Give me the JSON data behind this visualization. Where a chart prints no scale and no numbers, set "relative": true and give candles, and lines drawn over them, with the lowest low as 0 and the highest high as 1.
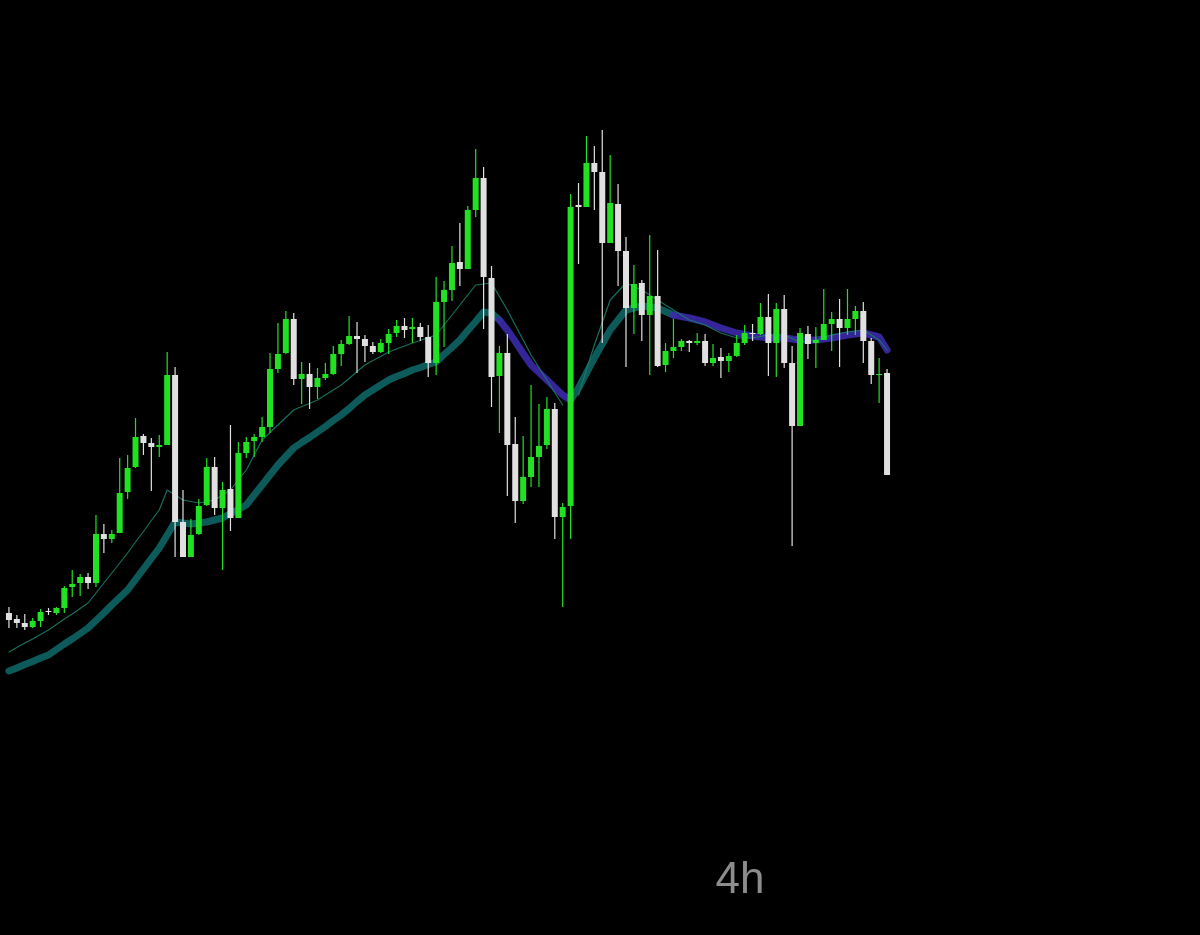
{
  "chart_data": {
    "type": "candlestick",
    "title": "4h",
    "relative": true,
    "categories": [
      null,
      null,
      null,
      null,
      null,
      null,
      null,
      null,
      null,
      null,
      null,
      null,
      null,
      null,
      null,
      null,
      null,
      null,
      null,
      null,
      null,
      null,
      null,
      null,
      null,
      null,
      null,
      null,
      null,
      null,
      null,
      null,
      null,
      null,
      null,
      null,
      null,
      null,
      null,
      null,
      null,
      null,
      null,
      null,
      null,
      null,
      null,
      null,
      null,
      null,
      null,
      null,
      null,
      null,
      null,
      null,
      null,
      null,
      null,
      null,
      null,
      null,
      null,
      null,
      null,
      null,
      null,
      null,
      null,
      null,
      null,
      null,
      null,
      null,
      null,
      null,
      null,
      null,
      null,
      null,
      null,
      null,
      null,
      null,
      null,
      null,
      null,
      null,
      null,
      null,
      null,
      null,
      null,
      null,
      null,
      null,
      null,
      null,
      null,
      null,
      null,
      null,
      null,
      null,
      null,
      null,
      null,
      null,
      null,
      null,
      null,
      null
    ],
    "ohlc": [
      [
        0.034,
        0.046,
        0.004,
        0.02
      ],
      [
        0.022,
        0.03,
        0.004,
        0.014
      ],
      [
        0.014,
        0.032,
        0,
        0.006
      ],
      [
        0.006,
        0.024,
        0.004,
        0.018
      ],
      [
        0.018,
        0.042,
        0.006,
        0.036
      ],
      [
        0.038,
        0.044,
        0.03,
        0.036
      ],
      [
        0.034,
        0.046,
        0.03,
        0.044
      ],
      [
        0.044,
        0.088,
        0.034,
        0.084
      ],
      [
        0.086,
        0.12,
        0.066,
        0.092
      ],
      [
        0.094,
        0.112,
        0.068,
        0.106
      ],
      [
        0.106,
        0.114,
        0.082,
        0.094
      ],
      [
        0.094,
        0.23,
        0.086,
        0.192
      ],
      [
        0.192,
        0.212,
        0.154,
        0.182
      ],
      [
        0.182,
        0.2,
        0.174,
        0.192
      ],
      [
        0.194,
        0.344,
        0.194,
        0.274
      ],
      [
        0.276,
        0.35,
        0.262,
        0.324
      ],
      [
        0.326,
        0.424,
        0.324,
        0.386
      ],
      [
        0.388,
        0.392,
        0.35,
        0.374
      ],
      [
        0.374,
        0.384,
        0.278,
        0.366
      ],
      [
        0.366,
        0.39,
        0.346,
        0.37
      ],
      [
        0.37,
        0.556,
        0.37,
        0.51
      ],
      [
        0.51,
        0.526,
        0.146,
        0.216
      ],
      [
        0.216,
        0.28,
        0.146,
        0.146
      ],
      [
        0.146,
        0.222,
        0.146,
        0.19
      ],
      [
        0.192,
        0.262,
        0.19,
        0.248
      ],
      [
        0.25,
        0.344,
        0.248,
        0.326
      ],
      [
        0.326,
        0.346,
        0.23,
        0.244
      ],
      [
        0.244,
        0.296,
        0.12,
        0.28
      ],
      [
        0.282,
        0.41,
        0.198,
        0.224
      ],
      [
        0.224,
        0.376,
        0.224,
        0.354
      ],
      [
        0.354,
        0.386,
        0.344,
        0.376
      ],
      [
        0.378,
        0.392,
        0.346,
        0.386
      ],
      [
        0.386,
        0.426,
        0.376,
        0.406
      ],
      [
        0.406,
        0.554,
        0.394,
        0.522
      ],
      [
        0.522,
        0.614,
        0.514,
        0.552
      ],
      [
        0.554,
        0.638,
        0.552,
        0.622
      ],
      [
        0.622,
        0.634,
        0.49,
        0.502
      ],
      [
        0.502,
        0.536,
        0.452,
        0.512
      ],
      [
        0.512,
        0.534,
        0.442,
        0.486
      ],
      [
        0.486,
        0.524,
        0.462,
        0.504
      ],
      [
        0.504,
        0.534,
        0.5,
        0.512
      ],
      [
        0.512,
        0.568,
        0.51,
        0.552
      ],
      [
        0.552,
        0.58,
        0.528,
        0.572
      ],
      [
        0.572,
        0.628,
        0.57,
        0.588
      ],
      [
        0.588,
        0.616,
        0.514,
        0.582
      ],
      [
        0.582,
        0.59,
        0.536,
        0.568
      ],
      [
        0.568,
        0.576,
        0.552,
        0.556
      ],
      [
        0.556,
        0.582,
        0.554,
        0.574
      ],
      [
        0.574,
        0.602,
        0.552,
        0.592
      ],
      [
        0.594,
        0.62,
        0.586,
        0.608
      ],
      [
        0.608,
        0.624,
        0.584,
        0.6
      ],
      [
        0.602,
        0.624,
        0.574,
        0.606
      ],
      [
        0.606,
        0.614,
        0.578,
        0.586
      ],
      [
        0.586,
        0.61,
        0.506,
        0.534
      ],
      [
        0.534,
        0.706,
        0.51,
        0.656
      ],
      [
        0.656,
        0.698,
        0.566,
        0.68
      ],
      [
        0.68,
        0.768,
        0.658,
        0.734
      ],
      [
        0.736,
        0.814,
        0.688,
        0.722
      ],
      [
        0.722,
        0.848,
        0.722,
        0.84
      ],
      [
        0.84,
        0.962,
        0.826,
        0.904
      ],
      [
        0.904,
        0.926,
        0.602,
        0.706
      ],
      [
        0.704,
        0.728,
        0.446,
        0.506
      ],
      [
        0.508,
        0.568,
        0.394,
        0.554
      ],
      [
        0.554,
        0.592,
        0.268,
        0.37
      ],
      [
        0.372,
        0.426,
        0.214,
        0.258
      ],
      [
        0.258,
        0.388,
        0.252,
        0.306
      ],
      [
        0.306,
        0.49,
        0.286,
        0.346
      ],
      [
        0.346,
        0.452,
        0.286,
        0.368
      ],
      [
        0.37,
        0.466,
        0.362,
        0.442
      ],
      [
        0.442,
        0.454,
        0.182,
        0.226
      ],
      [
        0.226,
        0.254,
        0.046,
        0.246
      ],
      [
        0.248,
        0.872,
        0.182,
        0.846
      ],
      [
        0.85,
        0.894,
        0.732,
        0.846
      ],
      [
        0.846,
        0.988,
        0.846,
        0.934
      ],
      [
        0.934,
        0.968,
        0.84,
        0.916
      ],
      [
        0.916,
        1,
        0.574,
        0.774
      ],
      [
        0.774,
        0.95,
        0.774,
        0.854
      ],
      [
        0.852,
        0.892,
        0.688,
        0.758
      ],
      [
        0.758,
        0.786,
        0.526,
        0.644
      ],
      [
        0.644,
        0.73,
        0.592,
        0.692
      ],
      [
        0.694,
        0.7,
        0.578,
        0.63
      ],
      [
        0.63,
        0.79,
        0.51,
        0.668
      ],
      [
        0.668,
        0.76,
        0.526,
        0.528
      ],
      [
        0.53,
        0.574,
        0.516,
        0.558
      ],
      [
        0.558,
        0.622,
        0.544,
        0.566
      ],
      [
        0.566,
        0.582,
        0.558,
        0.578
      ],
      [
        0.578,
        0.58,
        0.556,
        0.574
      ],
      [
        0.574,
        0.594,
        0.57,
        0.578
      ],
      [
        0.578,
        0.592,
        0.528,
        0.534
      ],
      [
        0.534,
        0.572,
        0.528,
        0.544
      ],
      [
        0.546,
        0.564,
        0.504,
        0.538
      ],
      [
        0.538,
        0.554,
        0.516,
        0.548
      ],
      [
        0.548,
        0.59,
        0.546,
        0.574
      ],
      [
        0.574,
        0.61,
        0.57,
        0.594
      ],
      [
        0.594,
        0.612,
        0.578,
        0.592
      ],
      [
        0.592,
        0.654,
        0.59,
        0.626
      ],
      [
        0.626,
        0.672,
        0.508,
        0.574
      ],
      [
        0.574,
        0.654,
        0.506,
        0.642
      ],
      [
        0.642,
        0.67,
        0.524,
        0.534
      ],
      [
        0.534,
        0.568,
        0.168,
        0.408
      ],
      [
        0.408,
        0.604,
        0.408,
        0.594
      ],
      [
        0.592,
        0.608,
        0.542,
        0.572
      ],
      [
        0.574,
        0.606,
        0.524,
        0.58
      ],
      [
        0.58,
        0.682,
        0.58,
        0.612
      ],
      [
        0.612,
        0.636,
        0.558,
        0.622
      ],
      [
        0.622,
        0.662,
        0.526,
        0.604
      ],
      [
        0.604,
        0.682,
        0.59,
        0.622
      ],
      [
        0.622,
        0.648,
        0.59,
        0.638
      ],
      [
        0.638,
        0.656,
        0.534,
        0.578
      ],
      [
        0.578,
        0.584,
        0.492,
        0.51
      ],
      [
        0.51,
        0.544,
        0.454,
        0.512
      ],
      [
        0.514,
        0.522,
        0.31,
        0.31
      ]
    ],
    "colors": [
      "#e0e0e0",
      "#e0e0e0",
      "#e0e0e0",
      "#22e022",
      "#22e022",
      "#e0e0e0",
      "#22e022",
      "#22e022",
      "#22e022",
      "#22e022",
      "#e0e0e0",
      "#22e022",
      "#e0e0e0",
      "#22e022",
      "#22e022",
      "#22e022",
      "#22e022",
      "#e0e0e0",
      "#e0e0e0",
      "#22e022",
      "#22e022",
      "#e0e0e0",
      "#e0e0e0",
      "#22e022",
      "#22e022",
      "#22e022",
      "#e0e0e0",
      "#22e022",
      "#e0e0e0",
      "#22e022",
      "#22e022",
      "#22e022",
      "#22e022",
      "#22e022",
      "#22e022",
      "#22e022",
      "#e0e0e0",
      "#22e022",
      "#e0e0e0",
      "#22e022",
      "#22e022",
      "#22e022",
      "#22e022",
      "#22e022",
      "#e0e0e0",
      "#e0e0e0",
      "#e0e0e0",
      "#22e022",
      "#22e022",
      "#22e022",
      "#e0e0e0",
      "#22e022",
      "#e0e0e0",
      "#e0e0e0",
      "#22e022",
      "#22e022",
      "#22e022",
      "#e0e0e0",
      "#22e022",
      "#22e022",
      "#e0e0e0",
      "#e0e0e0",
      "#22e022",
      "#e0e0e0",
      "#e0e0e0",
      "#22e022",
      "#22e022",
      "#22e022",
      "#22e022",
      "#e0e0e0",
      "#22e022",
      "#22e022",
      "#e0e0e0",
      "#22e022",
      "#e0e0e0",
      "#e0e0e0",
      "#22e022",
      "#e0e0e0",
      "#e0e0e0",
      "#22e022",
      "#e0e0e0",
      "#22e022",
      "#e0e0e0",
      "#22e022",
      "#22e022",
      "#22e022",
      "#e0e0e0",
      "#22e022",
      "#e0e0e0",
      "#22e022",
      "#e0e0e0",
      "#22e022",
      "#22e022",
      "#22e022",
      "#e0e0e0",
      "#22e022",
      "#e0e0e0",
      "#22e022",
      "#e0e0e0",
      "#e0e0e0",
      "#22e022",
      "#e0e0e0",
      "#22e022",
      "#22e022",
      "#22e022",
      "#e0e0e0",
      "#22e022",
      "#22e022",
      "#e0e0e0",
      "#e0e0e0",
      "#22e022",
      "#e0e0e0"
    ],
    "series": [
      {
        "type": "line",
        "color": "#0e6464",
        "values": [
          -0.082,
          -0.076,
          -0.069,
          -0.063,
          -0.056,
          -0.05,
          -0.039,
          -0.028,
          -0.018,
          -0.007,
          0.004,
          0.019,
          0.034,
          0.05,
          0.065,
          0.08,
          0.101,
          0.122,
          0.143,
          0.164,
          0.19,
          0.216,
          0.214,
          0.212,
          0.214,
          0.216,
          0.22,
          0.224,
          0.233,
          0.241,
          0.25,
          0.27,
          0.29,
          0.31,
          0.33,
          0.347,
          0.364,
          0.375,
          0.385,
          0.396,
          0.407,
          0.419,
          0.43,
          0.443,
          0.457,
          0.47,
          0.48,
          0.49,
          0.5,
          0.507,
          0.513,
          0.52,
          0.525,
          0.531,
          0.536,
          0.551,
          0.565,
          0.58,
          0.599,
          0.617,
          0.636,
          0.634,
          0.62,
          null,
          null,
          null,
          null,
          null,
          null,
          null,
          null,
          0.46,
          0.484,
          0.514,
          0.544,
          0.572,
          0.6,
          0.62,
          0.64,
          0.644,
          0.648,
          0.646,
          0.644,
          0.637,
          0.63,
          null,
          null,
          null,
          null,
          null,
          null,
          null,
          null,
          null,
          null,
          null,
          null,
          null,
          null,
          null,
          null,
          null,
          null,
          null,
          null,
          null,
          null,
          null,
          null,
          null,
          null,
          null
        ]
      },
      {
        "type": "line",
        "color": "#3a2aa8",
        "values": [
          null,
          null,
          null,
          null,
          null,
          null,
          null,
          null,
          null,
          null,
          null,
          null,
          null,
          null,
          null,
          null,
          null,
          null,
          null,
          null,
          null,
          null,
          null,
          null,
          null,
          null,
          null,
          null,
          null,
          null,
          null,
          null,
          null,
          null,
          null,
          null,
          null,
          null,
          null,
          null,
          null,
          null,
          null,
          null,
          null,
          null,
          null,
          null,
          null,
          null,
          null,
          null,
          null,
          null,
          null,
          null,
          null,
          null,
          null,
          null,
          null,
          null,
          0.62,
          0.6,
          0.577,
          0.553,
          0.53,
          0.515,
          0.5,
          0.485,
          0.47,
          0.46,
          null,
          null,
          null,
          null,
          null,
          null,
          null,
          null,
          null,
          null,
          null,
          null,
          0.63,
          0.627,
          0.624,
          0.62,
          0.616,
          0.61,
          0.604,
          0.599,
          0.594,
          0.591,
          0.588,
          0.586,
          0.584,
          0.584,
          0.584,
          0.582,
          0.58,
          0.58,
          0.58,
          0.582,
          0.584,
          0.587,
          0.59,
          0.592,
          0.594,
          0.59,
          0.586,
          0.56
        ]
      },
      {
        "type": "line",
        "color": "#1a7a66",
        "values": [
          -0.044,
          -0.035,
          -0.026,
          -0.018,
          -0.009,
          0,
          0.011,
          0.022,
          0.032,
          0.043,
          0.054,
          0.074,
          0.094,
          0.114,
          0.134,
          0.154,
          0.176,
          0.197,
          0.219,
          0.24,
          0.28,
          0.27,
          0.26,
          0.257,
          0.254,
          0.257,
          0.26,
          0.27,
          0.28,
          0.3,
          0.32,
          0.35,
          0.38,
          0.395,
          0.41,
          0.425,
          0.44,
          0.447,
          0.453,
          0.46,
          0.47,
          0.48,
          0.49,
          0.503,
          0.517,
          0.53,
          0.539,
          0.547,
          0.556,
          0.562,
          0.568,
          0.574,
          0.579,
          0.585,
          0.59,
          0.61,
          0.63,
          0.65,
          0.67,
          0.69,
          0.692,
          0.694,
          0.667,
          0.64,
          0.61,
          0.58,
          0.55,
          0.525,
          0.5,
          0.475,
          0.45,
          null,
          0.47,
          0.52,
          0.57,
          0.615,
          0.66,
          0.677,
          0.694,
          0.687,
          0.68,
          0.67,
          0.66,
          0.65,
          0.64,
          0.63,
          0.62,
          0.615,
          0.61,
          0.602,
          0.594,
          0.589,
          0.584,
          0.584,
          0.584,
          0.587,
          0.59,
          0.59,
          0.59,
          0.583,
          0.576,
          0.578,
          0.58,
          0.585,
          0.59,
          0.593,
          0.596,
          0.598,
          0.6,
          0.59,
          0.58,
          0.56
        ]
      }
    ]
  }
}
